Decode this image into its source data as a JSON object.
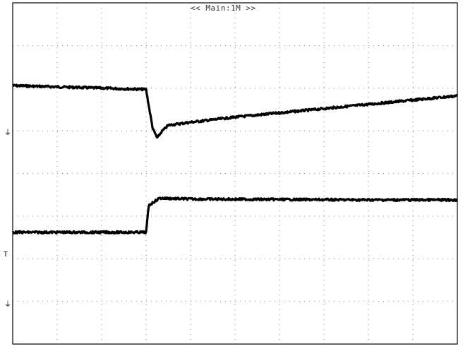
{
  "header": {
    "banner": "<< Main:1M >>"
  },
  "channel_markers": {
    "ch1_ground": "⏚",
    "ch2_trigger": "T",
    "ch2_ground": "⏚"
  },
  "colors": {
    "trace": "#000000",
    "grid": "#808080",
    "frame": "#000000",
    "background": "#ffffff"
  },
  "chart_data": {
    "type": "line",
    "title": "",
    "xlabel": "",
    "ylabel": "",
    "grid": true,
    "divisions": {
      "x": 10,
      "y": 8
    },
    "xlim": [
      0,
      10
    ],
    "ylim": [
      -4,
      4
    ],
    "series": [
      {
        "x": [
          0,
          3.0,
          3.05,
          3.15,
          3.25,
          3.35,
          3.5,
          4.0,
          5.0,
          6.0,
          7.0,
          8.0,
          9.0,
          10.0
        ],
        "y": [
          2.06,
          1.97,
          1.65,
          1.05,
          0.83,
          0.98,
          1.13,
          1.2,
          1.32,
          1.42,
          1.52,
          1.62,
          1.72,
          1.82
        ]
      },
      {
        "x": [
          0,
          3.0,
          3.06,
          3.3,
          4.0,
          6.0,
          8.0,
          10.0
        ],
        "y": [
          -1.38,
          -1.38,
          -0.75,
          -0.58,
          -0.6,
          -0.61,
          -0.62,
          -0.62
        ]
      }
    ]
  }
}
